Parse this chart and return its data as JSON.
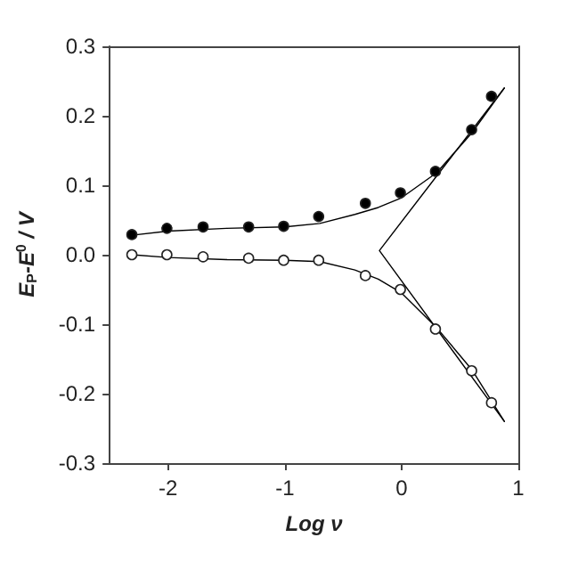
{
  "chart_data": {
    "type": "scatter",
    "xlabel": "Log ν",
    "ylabel": "E$_{P}$-E$^{0}$ / V",
    "xlim": [
      -2.5,
      1
    ],
    "xticks": [
      -2,
      -1,
      0,
      1
    ],
    "ylim": [
      -0.3,
      0.3
    ],
    "yticks": [
      -0.3,
      -0.2,
      -0.1,
      {
        "value": 0,
        "label": "0.0"
      },
      0.1,
      0.2,
      0.3
    ],
    "grid": false,
    "marker": "circle",
    "series": [
      {
        "type": "line",
        "color": "#000000",
        "marker": "none",
        "line_style": "solid",
        "x": [
          -2.31,
          -2,
          -1.5,
          -1,
          -0.7,
          -0.4,
          -0.2,
          0,
          0.3,
          0.6,
          0.88
        ],
        "values": [
          0.028,
          0.034,
          0.038,
          0.04,
          0.045,
          0.058,
          0.068,
          0.082,
          0.118,
          0.175,
          0.24
        ]
      },
      {
        "type": "line",
        "color": "#000000",
        "marker": "none",
        "line_style": "solid",
        "x": [
          -2.31,
          -2,
          -1.5,
          -1,
          -0.7,
          -0.4,
          -0.2,
          0,
          0.3,
          0.6,
          0.88
        ],
        "values": [
          0.0,
          -0.004,
          -0.007,
          -0.008,
          -0.01,
          -0.022,
          -0.035,
          -0.055,
          -0.105,
          -0.165,
          -0.24
        ]
      },
      {
        "type": "line",
        "color": "#000000",
        "marker": "none",
        "line_style": "solid",
        "x": [
          0.88,
          -0.19,
          0.88
        ],
        "values": [
          0.24,
          0.006,
          -0.24
        ]
      },
      {
        "color": "#000000",
        "x": [
          -2.31,
          -2.01,
          -1.7,
          -1.31,
          -1.01,
          -0.71,
          -0.31,
          -0.01,
          0.29,
          0.6,
          0.77
        ],
        "values": [
          0.029,
          0.038,
          0.04,
          0.04,
          0.041,
          0.055,
          0.074,
          0.089,
          0.12,
          0.18,
          0.228
        ]
      },
      {
        "color": "#ffffff",
        "x": [
          -2.31,
          -2.01,
          -1.7,
          -1.31,
          -1.01,
          -0.71,
          -0.31,
          -0.01,
          0.29,
          0.6,
          0.77
        ],
        "values": [
          0.0,
          0.0,
          -0.003,
          -0.005,
          -0.008,
          -0.008,
          -0.03,
          -0.05,
          -0.107,
          -0.167,
          -0.213
        ]
      }
    ]
  }
}
